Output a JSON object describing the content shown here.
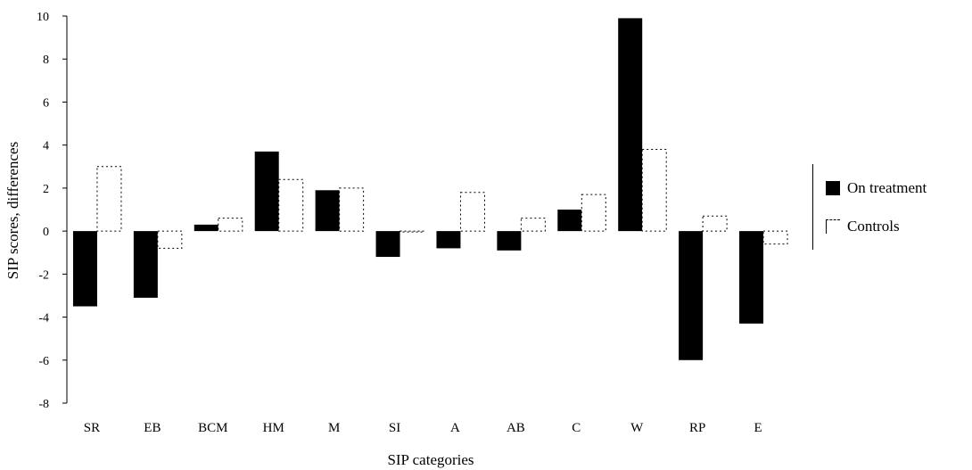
{
  "chart_data": {
    "type": "bar",
    "title": "",
    "xlabel": "SIP categories",
    "ylabel": "SIP scores, differences",
    "ylim": [
      -8,
      10
    ],
    "yticks": [
      10,
      8,
      6,
      4,
      2,
      0,
      -2,
      -4,
      -6,
      -8
    ],
    "categories": [
      "SR",
      "EB",
      "BCM",
      "HM",
      "M",
      "SI",
      "A",
      "AB",
      "C",
      "W",
      "RP",
      "E"
    ],
    "series": [
      {
        "name": "On treatment",
        "color": "#000000",
        "style": "filled",
        "values": [
          -3.5,
          -3.1,
          0.3,
          3.7,
          1.9,
          -1.2,
          -0.8,
          -0.9,
          1.0,
          9.9,
          -6.0,
          -4.3
        ]
      },
      {
        "name": "Controls",
        "color": "#ffffff",
        "style": "outline",
        "values": [
          3.0,
          -0.8,
          0.6,
          2.4,
          2.0,
          0.0,
          1.8,
          0.6,
          1.7,
          3.8,
          0.7,
          -0.6
        ]
      }
    ],
    "legend_position": "right",
    "grid": false
  }
}
